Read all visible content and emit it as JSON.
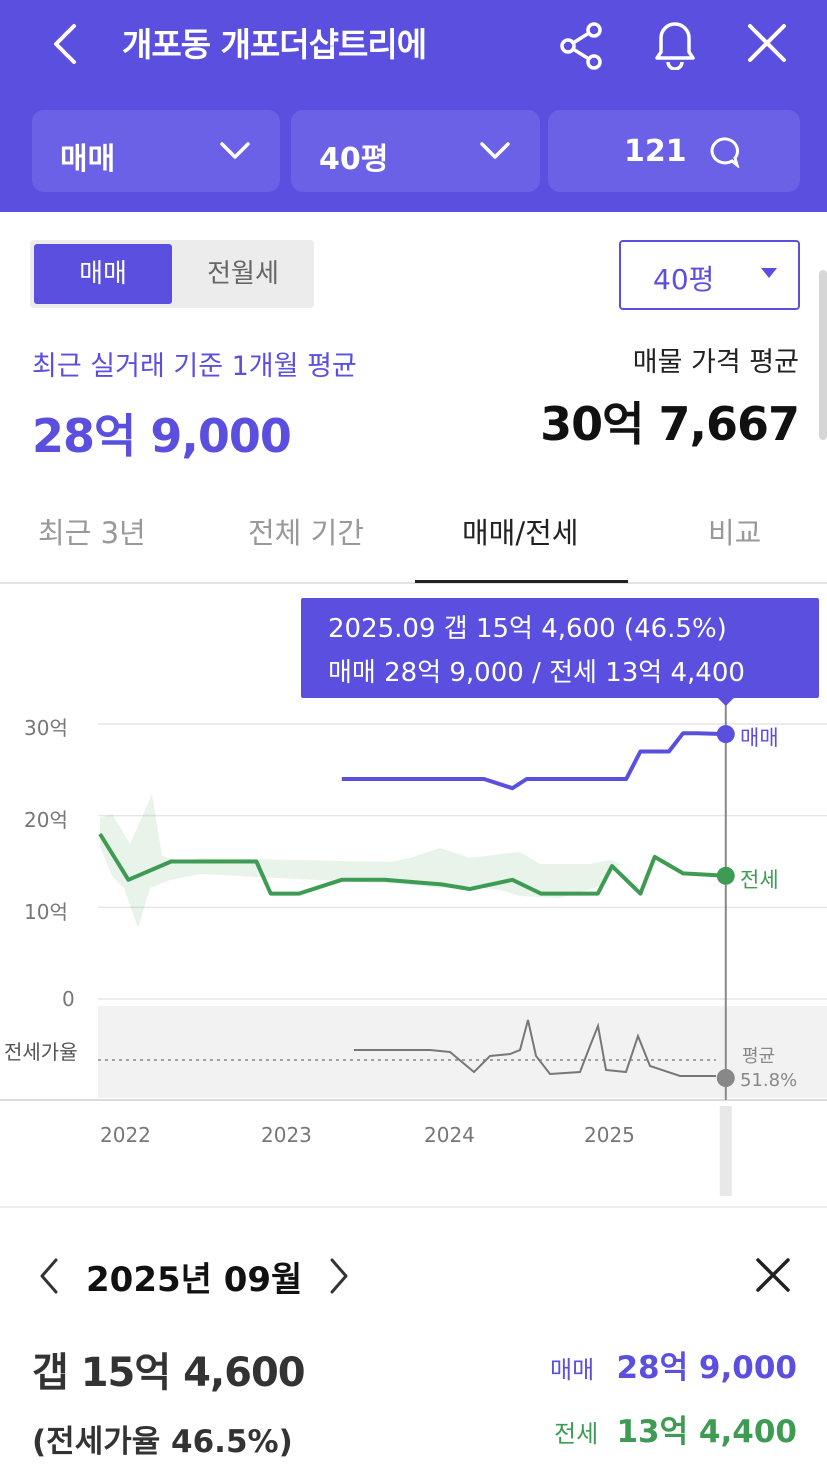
{
  "header": {
    "title": "개포동 개포더샵트리에",
    "icons": [
      "back-icon",
      "share-icon",
      "bell-icon",
      "close-icon"
    ],
    "filters": [
      {
        "label": "매매"
      },
      {
        "label": "40평"
      },
      {
        "label": "121"
      }
    ]
  },
  "toggle": {
    "options": [
      "매매",
      "전월세"
    ],
    "selected": "매매"
  },
  "size_dropdown": {
    "value": "40평"
  },
  "summary": {
    "recent_label": "최근 실거래 기준 1개월 평균",
    "recent_price": "28억 9,000",
    "listing_label": "매물 가격 평균",
    "listing_price": "30억 7,667"
  },
  "tabs": [
    {
      "label": "최근 3년",
      "active": false
    },
    {
      "label": "전체 기간",
      "active": false
    },
    {
      "label": "매매/전세",
      "active": true
    },
    {
      "label": "비교",
      "active": false
    }
  ],
  "tooltip": {
    "line1": "2025.09  갭 15억 4,600 (46.5%)",
    "line2": "매매 28억 9,000 / 전세 13억 4,400"
  },
  "chart_data": {
    "type": "line",
    "y_ticks": [
      "30억",
      "20억",
      "10억",
      "0"
    ],
    "ratio_label": "전세가율",
    "x_ticks": [
      "2022",
      "2023",
      "2024",
      "2025"
    ],
    "series_labels": {
      "sale": "매매",
      "jeonse": "전세",
      "avg": "평균",
      "avg_value": "51.8%"
    },
    "sale": {
      "name": "매매",
      "color": "#5b4fe0",
      "x": [
        "2023.06",
        "2023.09",
        "2024.01",
        "2024.04",
        "2024.06",
        "2024.07",
        "2024.10",
        "2025.01",
        "2025.02",
        "2025.03",
        "2025.05",
        "2025.06",
        "2025.07",
        "2025.09"
      ],
      "values": [
        24,
        24,
        24,
        24,
        23,
        24,
        24,
        24,
        24,
        27,
        27,
        29,
        29,
        28.9
      ]
    },
    "jeonse": {
      "name": "전세",
      "color": "#3e9b54",
      "x": [
        "2022.01",
        "2022.03",
        "2022.06",
        "2022.09",
        "2022.12",
        "2023.01",
        "2023.03",
        "2023.06",
        "2023.09",
        "2024.01",
        "2024.03",
        "2024.06",
        "2024.08",
        "2024.12",
        "2025.01",
        "2025.03",
        "2025.04",
        "2025.06",
        "2025.09"
      ],
      "values": [
        18,
        13,
        15,
        15,
        15,
        11.5,
        11.5,
        13,
        13,
        12.5,
        12,
        13,
        11.5,
        11.5,
        14.5,
        11.5,
        15.5,
        13.7,
        13.44
      ]
    },
    "ratio": {
      "color": "#777777",
      "average": 51.8,
      "current": 46.5
    },
    "ylim": [
      0,
      30
    ],
    "selected_point": "2025.09"
  },
  "detail": {
    "month": "2025년 09월",
    "gap": "갭 15억 4,600",
    "ratio": "(전세가율 46.5%)",
    "sale_label": "매매",
    "sale_value": "28억 9,000",
    "jeonse_label": "전세",
    "jeonse_value": "13억 4,400"
  },
  "colors": {
    "brand": "#5b4fe0",
    "jeonse": "#3e9b54",
    "header_pill": "#6b61e6"
  }
}
